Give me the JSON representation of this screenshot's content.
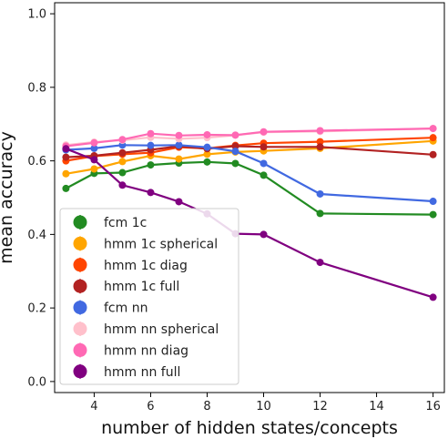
{
  "chart_data": {
    "type": "line",
    "title": "",
    "xlabel": "number of hidden states/concepts",
    "ylabel": "mean accuracy",
    "xlim": [
      2.6,
      16.4
    ],
    "ylim": [
      -0.03,
      1.03
    ],
    "xticks": [
      4,
      6,
      8,
      10,
      12,
      14,
      16
    ],
    "yticks": [
      0.0,
      0.2,
      0.4,
      0.6,
      0.8,
      1.0
    ],
    "ytick_labels": [
      "0.0",
      "0.2",
      "0.4",
      "0.6",
      "0.8",
      "1.0"
    ],
    "grid": false,
    "legend_position": "lower-left",
    "x": [
      3,
      4,
      5,
      6,
      7,
      8,
      9,
      10,
      12,
      16
    ],
    "series": [
      {
        "name": "fcm 1c",
        "color": "#228b22",
        "values": [
          0.525,
          0.566,
          0.568,
          0.589,
          0.594,
          0.597,
          0.593,
          0.561,
          0.457,
          0.454
        ]
      },
      {
        "name": "hmm 1c spherical",
        "color": "#ffa500",
        "values": [
          0.565,
          0.578,
          0.598,
          0.614,
          0.605,
          0.618,
          0.624,
          0.627,
          0.634,
          0.654
        ]
      },
      {
        "name": "hmm 1c diag",
        "color": "#ff4500",
        "values": [
          0.6,
          0.613,
          0.618,
          0.622,
          0.637,
          0.634,
          0.642,
          0.648,
          0.652,
          0.663
        ]
      },
      {
        "name": "hmm 1c full",
        "color": "#b22222",
        "values": [
          0.61,
          0.614,
          0.622,
          0.63,
          0.64,
          0.633,
          0.64,
          0.638,
          0.638,
          0.617
        ]
      },
      {
        "name": "fcm nn",
        "color": "#4169e1",
        "values": [
          0.63,
          0.634,
          0.643,
          0.642,
          0.643,
          0.637,
          0.626,
          0.593,
          0.51,
          0.49
        ]
      },
      {
        "name": "hmm nn spherical",
        "color": "#ffc0cb",
        "values": [
          0.643,
          0.651,
          0.656,
          0.664,
          0.66,
          0.663,
          0.67,
          0.678,
          0.68,
          0.688
        ]
      },
      {
        "name": "hmm nn diag",
        "color": "#ff69b4",
        "values": [
          0.64,
          0.649,
          0.658,
          0.674,
          0.669,
          0.671,
          0.67,
          0.679,
          0.682,
          0.688
        ]
      },
      {
        "name": "hmm nn full",
        "color": "#800080",
        "values": [
          0.633,
          0.603,
          0.534,
          0.514,
          0.489,
          0.456,
          0.402,
          0.4,
          0.324,
          0.229
        ]
      }
    ]
  }
}
